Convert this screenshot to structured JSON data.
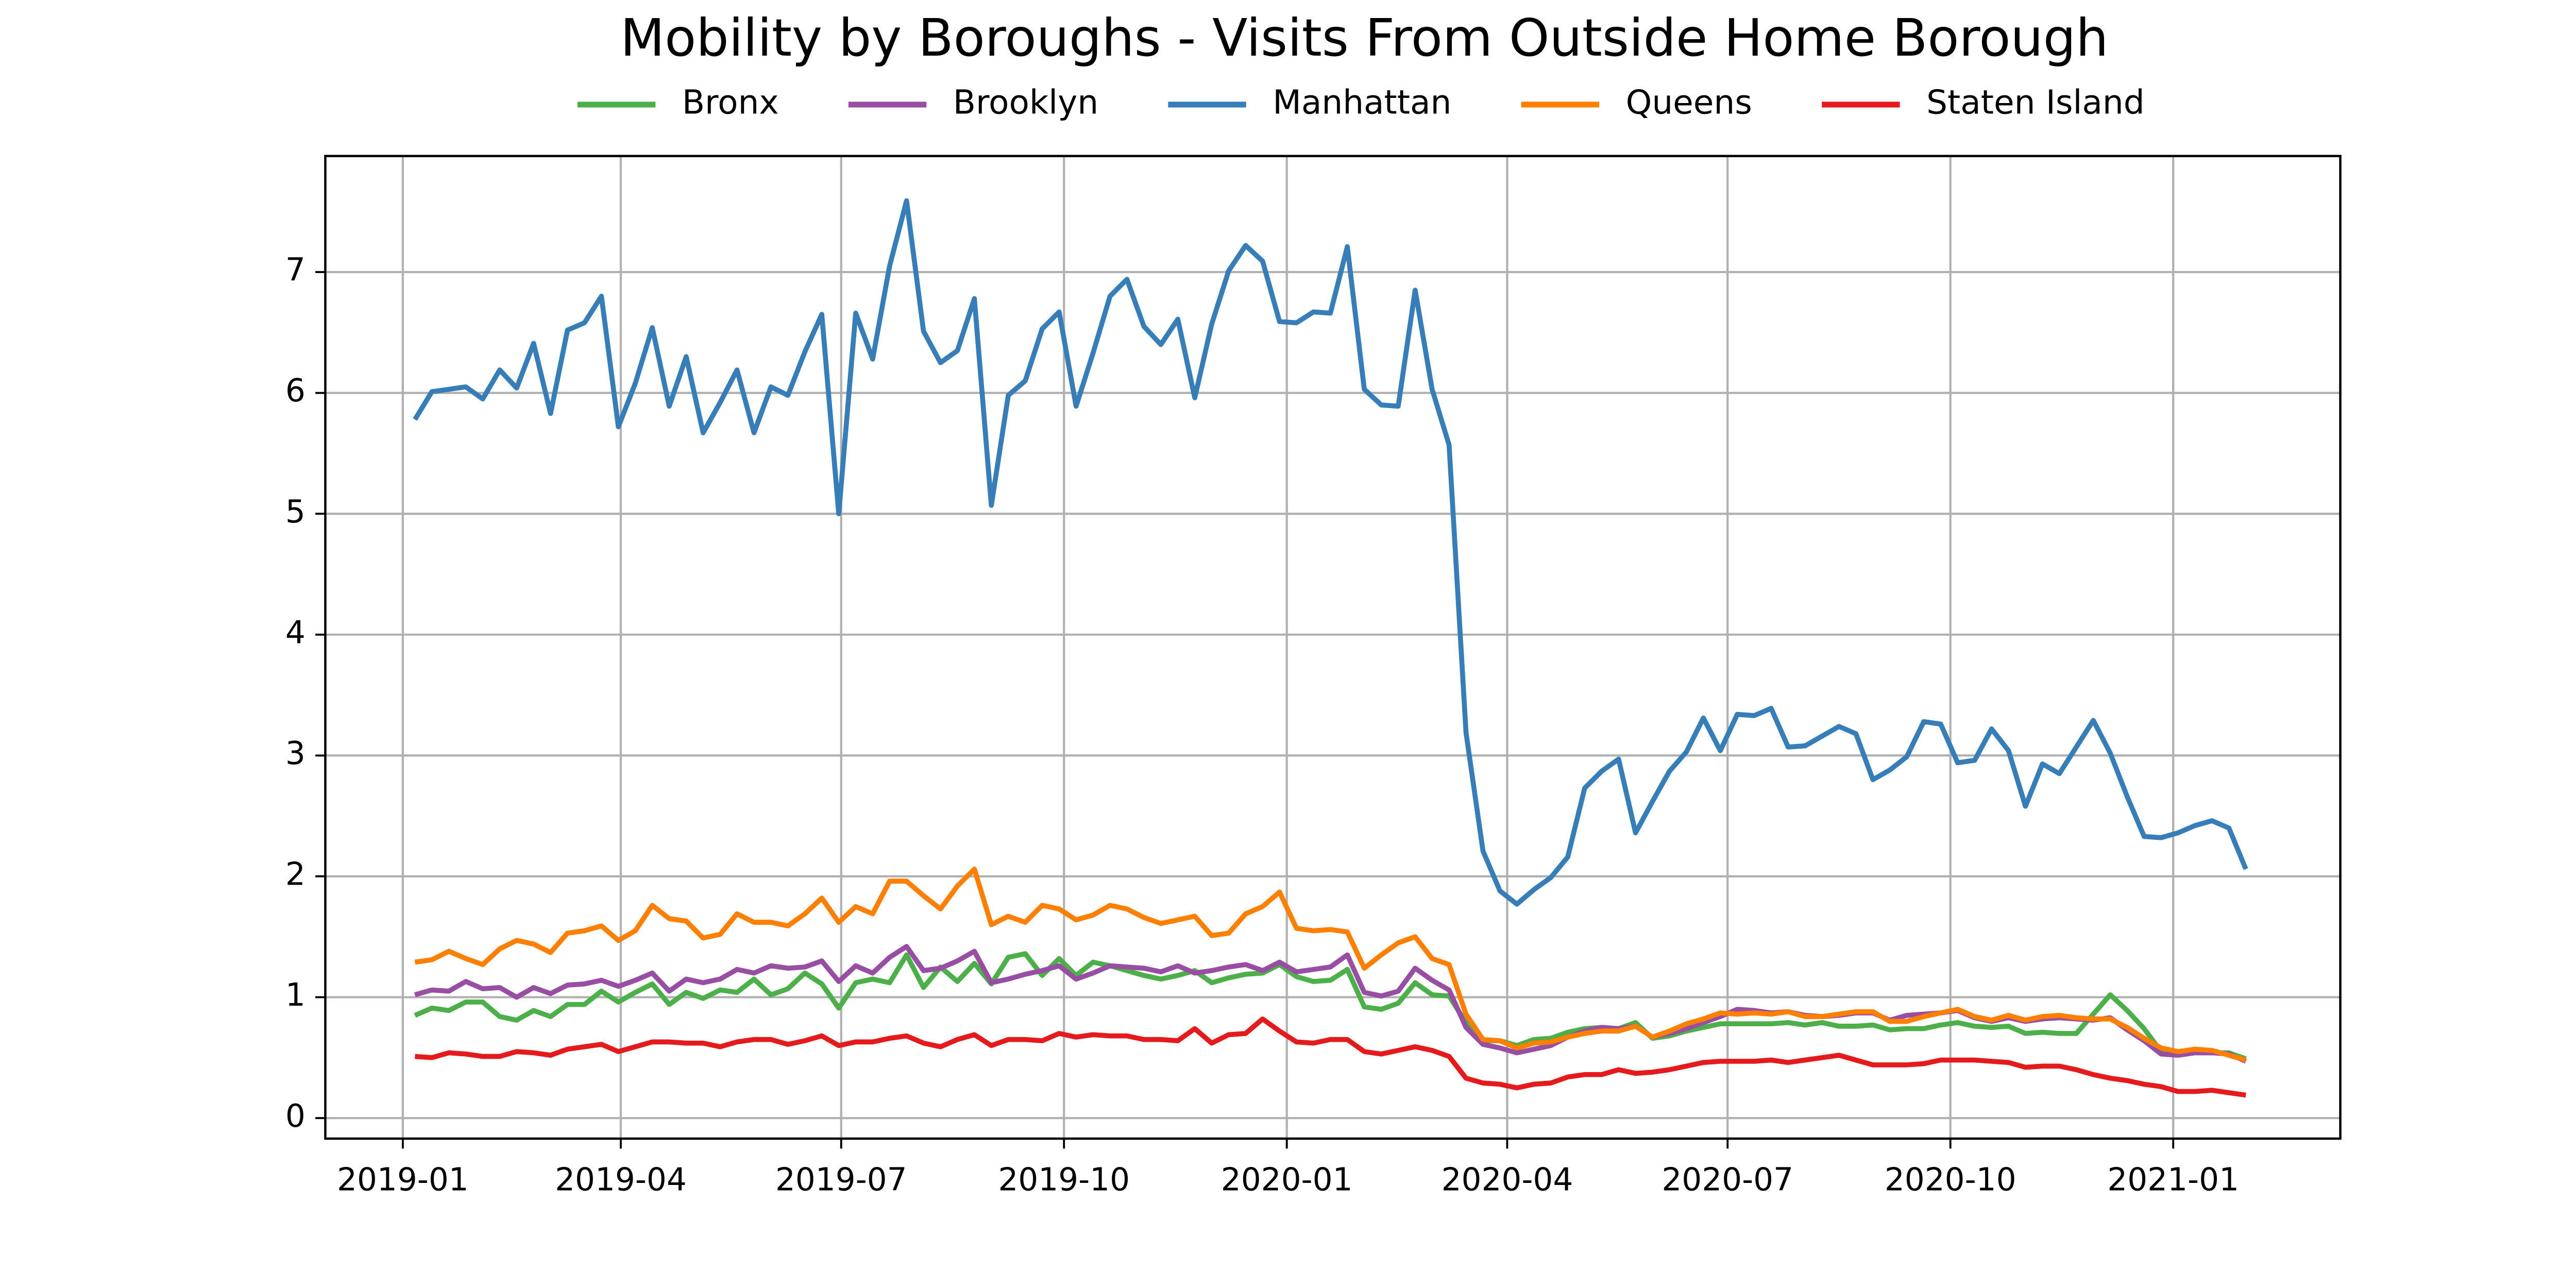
{
  "chart_data": {
    "type": "line",
    "title": "Mobility by Boroughs - Visits From Outside Home Borough",
    "x": [
      "2019-01-06",
      "2019-01-13",
      "2019-01-20",
      "2019-01-27",
      "2019-02-03",
      "2019-02-10",
      "2019-02-17",
      "2019-02-24",
      "2019-03-03",
      "2019-03-10",
      "2019-03-17",
      "2019-03-24",
      "2019-03-31",
      "2019-04-07",
      "2019-04-14",
      "2019-04-21",
      "2019-04-28",
      "2019-05-05",
      "2019-05-12",
      "2019-05-19",
      "2019-05-26",
      "2019-06-02",
      "2019-06-09",
      "2019-06-16",
      "2019-06-23",
      "2019-06-30",
      "2019-07-07",
      "2019-07-14",
      "2019-07-21",
      "2019-07-28",
      "2019-08-04",
      "2019-08-11",
      "2019-08-18",
      "2019-08-25",
      "2019-09-01",
      "2019-09-08",
      "2019-09-15",
      "2019-09-22",
      "2019-09-29",
      "2019-10-06",
      "2019-10-13",
      "2019-10-20",
      "2019-10-27",
      "2019-11-03",
      "2019-11-10",
      "2019-11-17",
      "2019-11-24",
      "2019-12-01",
      "2019-12-08",
      "2019-12-15",
      "2019-12-22",
      "2019-12-29",
      "2020-01-05",
      "2020-01-12",
      "2020-01-19",
      "2020-01-26",
      "2020-02-02",
      "2020-02-09",
      "2020-02-16",
      "2020-02-23",
      "2020-03-01",
      "2020-03-08",
      "2020-03-15",
      "2020-03-22",
      "2020-03-29",
      "2020-04-05",
      "2020-04-12",
      "2020-04-19",
      "2020-04-26",
      "2020-05-03",
      "2020-05-10",
      "2020-05-17",
      "2020-05-24",
      "2020-05-31",
      "2020-06-07",
      "2020-06-14",
      "2020-06-21",
      "2020-06-28",
      "2020-07-05",
      "2020-07-12",
      "2020-07-19",
      "2020-07-26",
      "2020-08-02",
      "2020-08-09",
      "2020-08-16",
      "2020-08-23",
      "2020-08-30",
      "2020-09-06",
      "2020-09-13",
      "2020-09-20",
      "2020-09-27",
      "2020-10-04",
      "2020-10-11",
      "2020-10-18",
      "2020-10-25",
      "2020-11-01",
      "2020-11-08",
      "2020-11-15",
      "2020-11-22",
      "2020-11-29",
      "2020-12-06",
      "2020-12-13",
      "2020-12-20",
      "2020-12-27",
      "2021-01-03",
      "2021-01-10",
      "2021-01-17",
      "2021-01-24",
      "2021-01-31"
    ],
    "series": [
      {
        "name": "Bronx",
        "color": "#4daf4a",
        "values": [
          0.85,
          0.91,
          0.89,
          0.96,
          0.96,
          0.84,
          0.81,
          0.89,
          0.84,
          0.94,
          0.94,
          1.05,
          0.96,
          1.04,
          1.11,
          0.94,
          1.04,
          0.99,
          1.06,
          1.04,
          1.15,
          1.02,
          1.07,
          1.2,
          1.11,
          0.91,
          1.12,
          1.15,
          1.12,
          1.35,
          1.08,
          1.25,
          1.13,
          1.28,
          1.11,
          1.33,
          1.36,
          1.18,
          1.32,
          1.18,
          1.29,
          1.26,
          1.22,
          1.18,
          1.15,
          1.18,
          1.22,
          1.12,
          1.16,
          1.19,
          1.2,
          1.27,
          1.17,
          1.13,
          1.14,
          1.23,
          0.92,
          0.9,
          0.95,
          1.12,
          1.02,
          1.01,
          0.79,
          0.64,
          0.64,
          0.6,
          0.65,
          0.66,
          0.71,
          0.74,
          0.75,
          0.74,
          0.79,
          0.66,
          0.68,
          0.72,
          0.75,
          0.78,
          0.78,
          0.78,
          0.78,
          0.79,
          0.77,
          0.79,
          0.76,
          0.76,
          0.77,
          0.73,
          0.74,
          0.74,
          0.77,
          0.79,
          0.76,
          0.75,
          0.76,
          0.7,
          0.71,
          0.7,
          0.7,
          0.86,
          1.02,
          0.89,
          0.74,
          0.55,
          0.53,
          0.55,
          0.54,
          0.54,
          0.49
        ]
      },
      {
        "name": "Brooklyn",
        "color": "#984ea3",
        "values": [
          1.02,
          1.06,
          1.05,
          1.13,
          1.07,
          1.08,
          1.0,
          1.08,
          1.03,
          1.1,
          1.11,
          1.14,
          1.09,
          1.14,
          1.2,
          1.05,
          1.15,
          1.12,
          1.15,
          1.23,
          1.2,
          1.26,
          1.24,
          1.25,
          1.3,
          1.13,
          1.26,
          1.2,
          1.33,
          1.42,
          1.22,
          1.24,
          1.3,
          1.38,
          1.12,
          1.15,
          1.19,
          1.22,
          1.26,
          1.15,
          1.2,
          1.26,
          1.25,
          1.24,
          1.21,
          1.26,
          1.2,
          1.22,
          1.25,
          1.27,
          1.22,
          1.29,
          1.21,
          1.23,
          1.25,
          1.35,
          1.04,
          1.01,
          1.05,
          1.24,
          1.14,
          1.06,
          0.75,
          0.61,
          0.58,
          0.54,
          0.57,
          0.6,
          0.67,
          0.72,
          0.75,
          0.74,
          0.76,
          0.67,
          0.7,
          0.74,
          0.79,
          0.84,
          0.9,
          0.89,
          0.87,
          0.88,
          0.85,
          0.84,
          0.85,
          0.87,
          0.87,
          0.81,
          0.85,
          0.86,
          0.87,
          0.89,
          0.83,
          0.8,
          0.83,
          0.8,
          0.82,
          0.83,
          0.82,
          0.81,
          0.83,
          0.73,
          0.64,
          0.53,
          0.52,
          0.54,
          0.54,
          0.53,
          0.47
        ]
      },
      {
        "name": "Manhattan",
        "color": "#377eb8",
        "values": [
          5.78,
          6.01,
          6.03,
          6.05,
          5.95,
          6.19,
          6.04,
          6.41,
          5.83,
          6.52,
          6.58,
          6.8,
          5.72,
          6.08,
          6.54,
          5.89,
          6.3,
          5.67,
          5.92,
          6.19,
          5.67,
          6.05,
          5.98,
          6.34,
          6.65,
          5.0,
          6.66,
          6.28,
          7.05,
          7.59,
          6.51,
          6.25,
          6.35,
          6.78,
          5.07,
          5.98,
          6.1,
          6.53,
          6.67,
          5.89,
          6.33,
          6.8,
          6.94,
          6.55,
          6.4,
          6.61,
          5.96,
          6.57,
          7.01,
          7.22,
          7.09,
          6.59,
          6.58,
          6.67,
          6.66,
          7.21,
          6.03,
          5.9,
          5.89,
          6.85,
          6.03,
          5.57,
          3.19,
          2.21,
          1.88,
          1.77,
          1.89,
          1.99,
          2.16,
          2.73,
          2.87,
          2.97,
          2.36,
          2.62,
          2.87,
          3.03,
          3.31,
          3.04,
          3.34,
          3.33,
          3.39,
          3.07,
          3.08,
          3.16,
          3.24,
          3.18,
          2.8,
          2.88,
          2.99,
          3.28,
          3.26,
          2.94,
          2.96,
          3.22,
          3.04,
          2.58,
          2.93,
          2.85,
          3.07,
          3.29,
          3.02,
          2.66,
          2.33,
          2.32,
          2.36,
          2.42,
          2.46,
          2.4,
          2.06
        ]
      },
      {
        "name": "Queens",
        "color": "#ff7f00",
        "values": [
          1.29,
          1.31,
          1.38,
          1.32,
          1.27,
          1.4,
          1.47,
          1.44,
          1.37,
          1.53,
          1.55,
          1.59,
          1.47,
          1.55,
          1.76,
          1.65,
          1.63,
          1.49,
          1.52,
          1.69,
          1.62,
          1.62,
          1.59,
          1.69,
          1.82,
          1.62,
          1.75,
          1.69,
          1.96,
          1.96,
          1.84,
          1.73,
          1.92,
          2.06,
          1.6,
          1.67,
          1.62,
          1.76,
          1.73,
          1.64,
          1.68,
          1.76,
          1.73,
          1.66,
          1.61,
          1.64,
          1.67,
          1.51,
          1.53,
          1.69,
          1.75,
          1.87,
          1.57,
          1.55,
          1.56,
          1.54,
          1.24,
          1.35,
          1.45,
          1.5,
          1.32,
          1.27,
          0.86,
          0.65,
          0.64,
          0.58,
          0.62,
          0.63,
          0.67,
          0.7,
          0.72,
          0.72,
          0.76,
          0.67,
          0.72,
          0.78,
          0.82,
          0.87,
          0.86,
          0.87,
          0.86,
          0.88,
          0.84,
          0.84,
          0.86,
          0.88,
          0.88,
          0.8,
          0.8,
          0.84,
          0.87,
          0.9,
          0.84,
          0.81,
          0.85,
          0.81,
          0.84,
          0.85,
          0.83,
          0.82,
          0.82,
          0.75,
          0.66,
          0.58,
          0.55,
          0.57,
          0.56,
          0.52,
          0.48
        ]
      },
      {
        "name": "Staten Island",
        "color": "#e41a1c",
        "values": [
          0.51,
          0.5,
          0.54,
          0.53,
          0.51,
          0.51,
          0.55,
          0.54,
          0.52,
          0.57,
          0.59,
          0.61,
          0.55,
          0.59,
          0.63,
          0.63,
          0.62,
          0.62,
          0.59,
          0.63,
          0.65,
          0.65,
          0.61,
          0.64,
          0.68,
          0.6,
          0.63,
          0.63,
          0.66,
          0.68,
          0.62,
          0.59,
          0.65,
          0.69,
          0.6,
          0.65,
          0.65,
          0.64,
          0.7,
          0.67,
          0.69,
          0.68,
          0.68,
          0.65,
          0.65,
          0.64,
          0.74,
          0.62,
          0.69,
          0.7,
          0.82,
          0.72,
          0.63,
          0.62,
          0.65,
          0.65,
          0.55,
          0.53,
          0.56,
          0.59,
          0.56,
          0.51,
          0.33,
          0.29,
          0.28,
          0.25,
          0.28,
          0.29,
          0.34,
          0.36,
          0.36,
          0.4,
          0.37,
          0.38,
          0.4,
          0.43,
          0.46,
          0.47,
          0.47,
          0.47,
          0.48,
          0.46,
          0.48,
          0.5,
          0.52,
          0.48,
          0.44,
          0.44,
          0.44,
          0.45,
          0.48,
          0.48,
          0.48,
          0.47,
          0.46,
          0.42,
          0.43,
          0.43,
          0.4,
          0.36,
          0.33,
          0.31,
          0.28,
          0.26,
          0.22,
          0.22,
          0.23,
          0.21,
          0.19
        ]
      }
    ],
    "xlim": [
      "2018-11-30",
      "2021-03-11"
    ],
    "xticks": [
      "2019-01",
      "2019-04",
      "2019-07",
      "2019-10",
      "2020-01",
      "2020-04",
      "2020-07",
      "2020-10",
      "2021-01"
    ],
    "ylim": [
      -0.17,
      7.96
    ],
    "yticks": [
      0,
      1,
      2,
      3,
      4,
      5,
      6,
      7
    ],
    "grid": true,
    "legend": "top"
  }
}
